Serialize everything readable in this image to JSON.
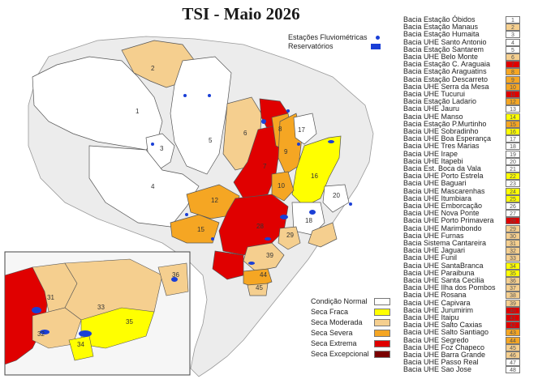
{
  "title": "TSI - Maio 2026",
  "top_legend": {
    "stations": "Estações Fluviométricas",
    "reservoirs": "Reservatórios"
  },
  "condition_legend": [
    {
      "label": "Condição Normal",
      "color": "#ffffff"
    },
    {
      "label": "Seca Fraca",
      "color": "#ffff00"
    },
    {
      "label": "Seca Moderada",
      "color": "#f5cf8f"
    },
    {
      "label": "Seca Severa",
      "color": "#f5a623"
    },
    {
      "label": "Seca Extrema",
      "color": "#e00000"
    },
    {
      "label": "Seca Excepcional",
      "color": "#7a0000"
    }
  ],
  "basins": [
    {
      "name": "Bacia Estação Óbidos",
      "num": "1",
      "color": "#ffffff"
    },
    {
      "name": "Bacia Estação Manaus",
      "num": "2",
      "color": "#f5cf8f"
    },
    {
      "name": "Bacia Estação Humaita",
      "num": "3",
      "color": "#ffffff"
    },
    {
      "name": "Bacia UHE Santo Antonio",
      "num": "4",
      "color": "#ffffff"
    },
    {
      "name": "Bacia Estação Santarem",
      "num": "5",
      "color": "#ffffff"
    },
    {
      "name": "Bacia UHE Belo Monte",
      "num": "6",
      "color": "#f5cf8f"
    },
    {
      "name": "Bacia Estação C. Araguaia",
      "num": "7",
      "color": "#e00000"
    },
    {
      "name": "Bacia Estação Araguatins",
      "num": "8",
      "color": "#f5a623"
    },
    {
      "name": "Bacia Estação Descarreto",
      "num": "9",
      "color": "#f5a623"
    },
    {
      "name": "Bacia UHE Serra da Mesa",
      "num": "10",
      "color": "#f5a623"
    },
    {
      "name": "Bacia UHE Tucurui",
      "num": "11",
      "color": "#e00000"
    },
    {
      "name": "Bacia Estação Ladario",
      "num": "12",
      "color": "#f5a623"
    },
    {
      "name": "Bacia UHE Jauru",
      "num": "13",
      "color": "#ffffff"
    },
    {
      "name": "Bacia UHE Manso",
      "num": "14",
      "color": "#ffff00"
    },
    {
      "name": "Bacia Estação P.Murtinho",
      "num": "15",
      "color": "#f5a623"
    },
    {
      "name": "Bacia UHE Sobradinho",
      "num": "16",
      "color": "#ffff00"
    },
    {
      "name": "Bacia UHE Boa Esperança",
      "num": "17",
      "color": "#ffffff"
    },
    {
      "name": "Bacia UHE Tres Marias",
      "num": "18",
      "color": "#ffffff"
    },
    {
      "name": "Bacia UHE Irape",
      "num": "19",
      "color": "#ffffff"
    },
    {
      "name": "Bacia UHE Itapebi",
      "num": "20",
      "color": "#ffffff"
    },
    {
      "name": "Bacia Est. Boca da Vala",
      "num": "21",
      "color": "#ffffff"
    },
    {
      "name": "Bacia UHE Porto Estrela",
      "num": "22",
      "color": "#ffff00"
    },
    {
      "name": "Bacia UHE Baguari",
      "num": "23",
      "color": "#ffffff"
    },
    {
      "name": "Bacia UHE Mascarenhas",
      "num": "24",
      "color": "#ffff00"
    },
    {
      "name": "Bacia UHE Itumbiara",
      "num": "25",
      "color": "#ffff00"
    },
    {
      "name": "Bacia UHE Emborcação",
      "num": "26",
      "color": "#ffffff"
    },
    {
      "name": "Bacia UHE Nova Ponte",
      "num": "27",
      "color": "#ffffff"
    },
    {
      "name": "Bacia UHE Porto Primavera",
      "num": "28",
      "color": "#e00000"
    },
    {
      "name": "Bacia UHE Marimbondo",
      "num": "29",
      "color": "#f5cf8f"
    },
    {
      "name": "Bacia UHE Furnas",
      "num": "30",
      "color": "#f5cf8f"
    },
    {
      "name": "Bacia Sistema Cantareira",
      "num": "31",
      "color": "#f5cf8f"
    },
    {
      "name": "Bacia UHE Jaguari",
      "num": "32",
      "color": "#f5cf8f"
    },
    {
      "name": "Bacia UHE Funil",
      "num": "33",
      "color": "#f5cf8f"
    },
    {
      "name": "Bacia UHE SantaBranca",
      "num": "34",
      "color": "#ffff00"
    },
    {
      "name": "Bacia UHE Paraibuna",
      "num": "35",
      "color": "#ffff00"
    },
    {
      "name": "Bacia UHE Santa Cecilia",
      "num": "36",
      "color": "#f5cf8f"
    },
    {
      "name": "Bacia UHE Ilha dos Pombos",
      "num": "37",
      "color": "#f5cf8f"
    },
    {
      "name": "Bacia UHE Rosana",
      "num": "38",
      "color": "#f5cf8f"
    },
    {
      "name": "Bacia UHE Capivara",
      "num": "39",
      "color": "#f5cf8f"
    },
    {
      "name": "Bacia UHE Jurumirim",
      "num": "40",
      "color": "#e00000"
    },
    {
      "name": "Bacia UHE Itaipu",
      "num": "41",
      "color": "#e00000"
    },
    {
      "name": "Bacia UHE Salto Caxias",
      "num": "42",
      "color": "#e00000"
    },
    {
      "name": "Bacia UHE Salto Santiago",
      "num": "43",
      "color": "#f5a623"
    },
    {
      "name": "Bacia UHE Segredo",
      "num": "44",
      "color": "#f5a623"
    },
    {
      "name": "Bacia UHE Foz Chapeco",
      "num": "45",
      "color": "#f5cf8f"
    },
    {
      "name": "Bacia UHE Barra Grande",
      "num": "46",
      "color": "#f5cf8f"
    },
    {
      "name": "Bacia UHE Passo Real",
      "num": "47",
      "color": "#ffffff"
    },
    {
      "name": "Bacia UHE Sao Jose",
      "num": "48",
      "color": "#ffffff"
    }
  ],
  "map_labels": [
    "1",
    "2",
    "3",
    "4",
    "5",
    "6",
    "7",
    "8",
    "9",
    "10",
    "12",
    "15",
    "16",
    "17",
    "18",
    "20",
    "28",
    "29",
    "39",
    "44",
    "45"
  ],
  "inset_labels": [
    "31",
    "32",
    "33",
    "34",
    "35",
    "36"
  ]
}
